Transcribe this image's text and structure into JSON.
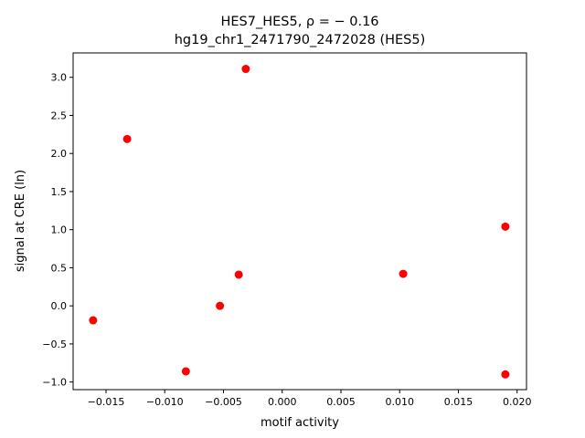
{
  "chart_data": {
    "type": "scatter",
    "title_line1": "HES7_HES5, ρ = − 0.16",
    "title_line2": "hg19_chr1_2471790_2472028 (HES5)",
    "xlabel": "motif activity",
    "ylabel": "signal at CRE (ln)",
    "xlim": [
      -0.0178,
      0.0208
    ],
    "ylim": [
      -1.1,
      3.32
    ],
    "xticks": [
      -0.015,
      -0.01,
      -0.005,
      0.0,
      0.005,
      0.01,
      0.015,
      0.02
    ],
    "xtick_labels": [
      "−0.015",
      "−0.010",
      "−0.005",
      "0.000",
      "0.005",
      "0.010",
      "0.015",
      "0.020"
    ],
    "yticks": [
      -1.0,
      -0.5,
      0.0,
      0.5,
      1.0,
      1.5,
      2.0,
      2.5,
      3.0
    ],
    "ytick_labels": [
      "−1.0",
      "−0.5",
      "0.0",
      "0.5",
      "1.0",
      "1.5",
      "2.0",
      "2.5",
      "3.0"
    ],
    "grid": false,
    "marker_color": "#ff0000",
    "points": [
      {
        "x": -0.0031,
        "y": 3.11
      },
      {
        "x": -0.0132,
        "y": 2.19
      },
      {
        "x": 0.019,
        "y": 1.04
      },
      {
        "x": -0.0037,
        "y": 0.41
      },
      {
        "x": 0.0103,
        "y": 0.42
      },
      {
        "x": -0.0053,
        "y": 0.0
      },
      {
        "x": -0.0161,
        "y": -0.19
      },
      {
        "x": -0.0082,
        "y": -0.86
      },
      {
        "x": 0.019,
        "y": -0.9
      }
    ]
  }
}
